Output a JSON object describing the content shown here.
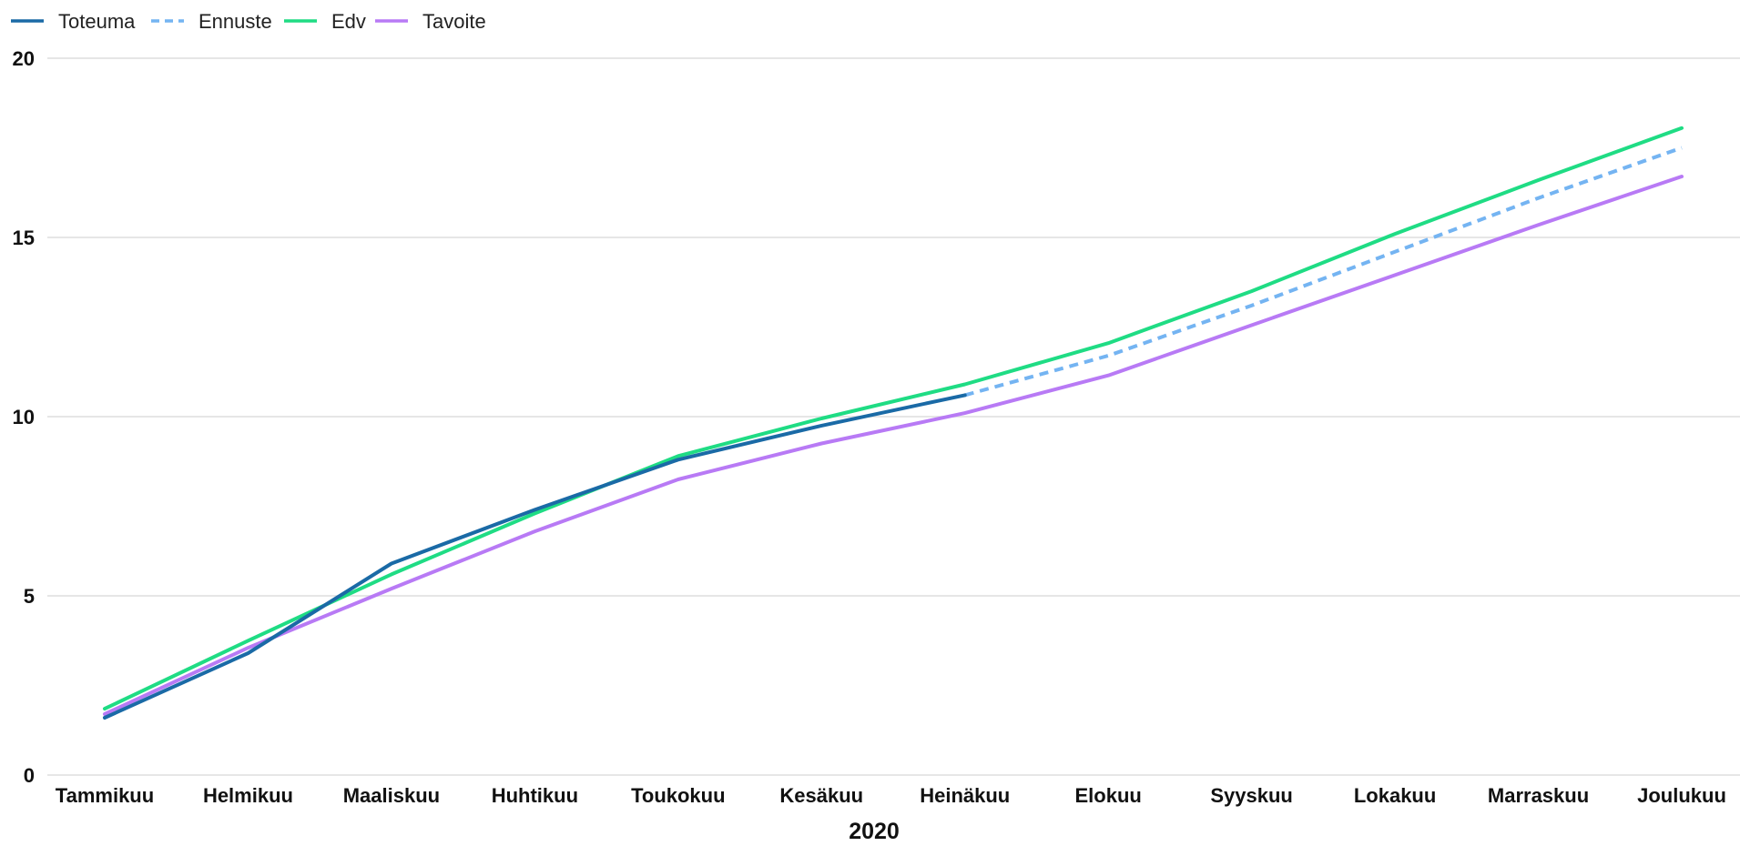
{
  "chart_data": {
    "type": "line",
    "categories": [
      "Tammikuu",
      "Helmikuu",
      "Maaliskuu",
      "Huhtikuu",
      "Toukokuu",
      "Kesäkuu",
      "Heinäkuu",
      "Elokuu",
      "Syyskuu",
      "Lokakuu",
      "Marraskuu",
      "Joulukuu"
    ],
    "series": [
      {
        "name": "Toteuma",
        "color": "#1a6aa6",
        "style": "solid",
        "values": [
          1.6,
          3.4,
          5.9,
          7.4,
          8.8,
          9.75,
          10.6,
          null,
          null,
          null,
          null,
          null
        ]
      },
      {
        "name": "Ennuste",
        "color": "#74b4f2",
        "style": "dashed",
        "values": [
          null,
          null,
          null,
          null,
          null,
          null,
          10.6,
          11.7,
          13.1,
          14.6,
          16.1,
          17.5
        ]
      },
      {
        "name": "Edv",
        "color": "#1fdc84",
        "style": "solid",
        "values": [
          1.85,
          3.75,
          5.6,
          7.3,
          8.9,
          9.95,
          10.9,
          12.05,
          13.5,
          15.1,
          16.6,
          18.05
        ]
      },
      {
        "name": "Tavoite",
        "color": "#b87af5",
        "style": "solid",
        "values": [
          1.7,
          3.55,
          5.2,
          6.8,
          8.25,
          9.25,
          10.1,
          11.15,
          12.55,
          13.95,
          15.35,
          16.7
        ]
      }
    ],
    "title": "",
    "xlabel": "2020",
    "ylabel": "",
    "ylim": [
      0,
      20
    ],
    "yticks": [
      "0",
      "5",
      "10",
      "15",
      "20"
    ],
    "grid": true,
    "legend_position": "top-left"
  }
}
